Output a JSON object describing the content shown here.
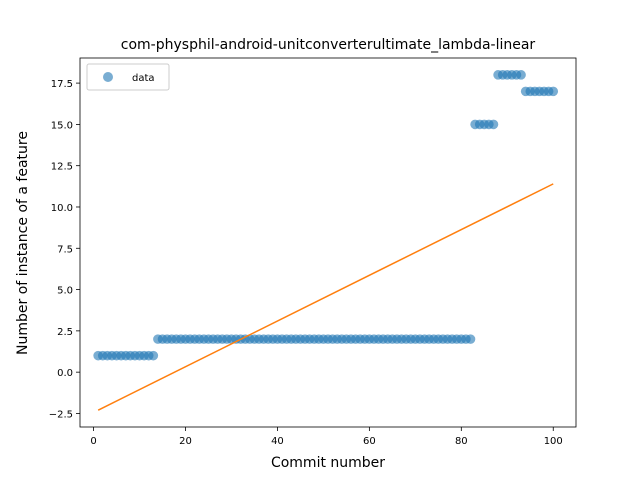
{
  "chart_data": {
    "type": "scatter",
    "title": "com-physphil-android-unitconverterultimate_lambda-linear",
    "xlabel": "Commit number",
    "ylabel": "Number of instance of a feature",
    "xlim": [
      -2.95,
      104.95
    ],
    "ylim": [
      -3.32,
      19.02
    ],
    "xticks": [
      0,
      20,
      40,
      60,
      80,
      100
    ],
    "xtick_labels": [
      "0",
      "20",
      "40",
      "60",
      "80",
      "100"
    ],
    "yticks": [
      -2.5,
      0.0,
      2.5,
      5.0,
      7.5,
      10.0,
      12.5,
      15.0,
      17.5
    ],
    "ytick_labels": [
      "−2.5",
      "0.0",
      "2.5",
      "5.0",
      "7.5",
      "10.0",
      "12.5",
      "15.0",
      "17.5"
    ],
    "grid": false,
    "legend": {
      "placement": "top-left",
      "entries": [
        "data"
      ]
    },
    "series": [
      {
        "name": "data",
        "kind": "scatter",
        "color": "#1f77b4",
        "x": [
          1,
          2,
          3,
          4,
          5,
          6,
          7,
          8,
          9,
          10,
          11,
          12,
          13,
          14,
          15,
          16,
          17,
          18,
          19,
          20,
          21,
          22,
          23,
          24,
          25,
          26,
          27,
          28,
          29,
          30,
          31,
          32,
          33,
          34,
          35,
          36,
          37,
          38,
          39,
          40,
          41,
          42,
          43,
          44,
          45,
          46,
          47,
          48,
          49,
          50,
          51,
          52,
          53,
          54,
          55,
          56,
          57,
          58,
          59,
          60,
          61,
          62,
          63,
          64,
          65,
          66,
          67,
          68,
          69,
          70,
          71,
          72,
          73,
          74,
          75,
          76,
          77,
          78,
          79,
          80,
          81,
          82,
          83,
          84,
          85,
          86,
          87,
          88,
          89,
          90,
          91,
          92,
          93,
          94,
          95,
          96,
          97,
          98,
          99,
          100
        ],
        "y": [
          1,
          1,
          1,
          1,
          1,
          1,
          1,
          1,
          1,
          1,
          1,
          1,
          1,
          2,
          2,
          2,
          2,
          2,
          2,
          2,
          2,
          2,
          2,
          2,
          2,
          2,
          2,
          2,
          2,
          2,
          2,
          2,
          2,
          2,
          2,
          2,
          2,
          2,
          2,
          2,
          2,
          2,
          2,
          2,
          2,
          2,
          2,
          2,
          2,
          2,
          2,
          2,
          2,
          2,
          2,
          2,
          2,
          2,
          2,
          2,
          2,
          2,
          2,
          2,
          2,
          2,
          2,
          2,
          2,
          2,
          2,
          2,
          2,
          2,
          2,
          2,
          2,
          2,
          2,
          2,
          2,
          2,
          15,
          15,
          15,
          15,
          15,
          18,
          18,
          18,
          18,
          18,
          18,
          17,
          17,
          17,
          17,
          17,
          17,
          17
        ]
      },
      {
        "kind": "line",
        "color": "#ff7f0e",
        "x": [
          1,
          100
        ],
        "y": [
          -2.3,
          11.4
        ]
      }
    ]
  }
}
